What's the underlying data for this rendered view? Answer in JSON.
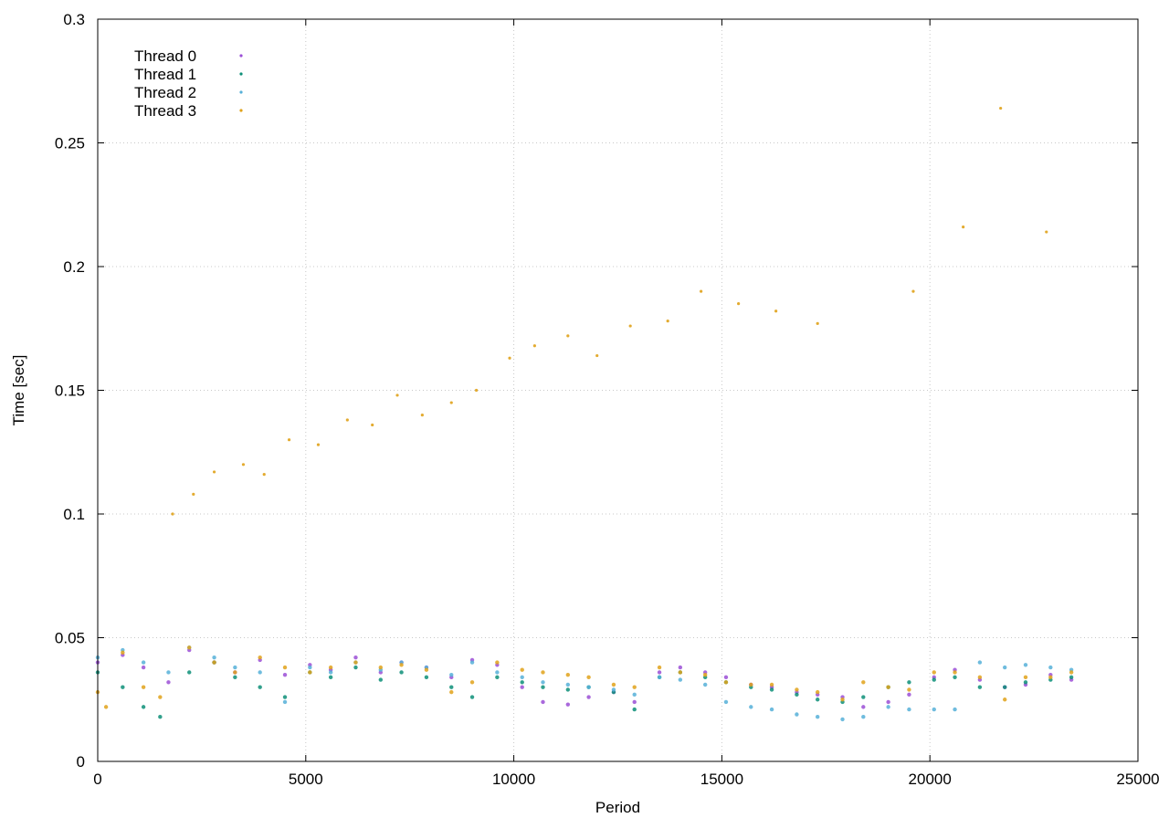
{
  "chart_data": {
    "type": "scatter",
    "title": "",
    "xlabel": "Period",
    "ylabel": "Time [sec]",
    "xlim": [
      0,
      25000
    ],
    "ylim": [
      0,
      0.3
    ],
    "x_ticks": [
      0,
      5000,
      10000,
      15000,
      20000,
      25000
    ],
    "x_tick_labels": [
      "0",
      "5000",
      "10000",
      "15000",
      "20000",
      "25000"
    ],
    "y_ticks": [
      0,
      0.05,
      0.1,
      0.15,
      0.2,
      0.25,
      0.3
    ],
    "y_tick_labels": [
      "0",
      "0.05",
      "0.1",
      "0.15",
      "0.2",
      "0.25",
      "0.3"
    ],
    "grid": true,
    "legend_position": "top-left",
    "series": [
      {
        "name": "Thread 0",
        "color": "#9b4fd6",
        "points": [
          [
            0,
            0.04
          ],
          [
            600,
            0.043
          ],
          [
            1100,
            0.038
          ],
          [
            1700,
            0.032
          ],
          [
            2200,
            0.045
          ],
          [
            2800,
            0.04
          ],
          [
            3300,
            0.036
          ],
          [
            3900,
            0.041
          ],
          [
            4500,
            0.035
          ],
          [
            5100,
            0.039
          ],
          [
            5600,
            0.037
          ],
          [
            6200,
            0.042
          ],
          [
            6800,
            0.036
          ],
          [
            7300,
            0.04
          ],
          [
            7900,
            0.038
          ],
          [
            8500,
            0.034
          ],
          [
            9000,
            0.041
          ],
          [
            9600,
            0.039
          ],
          [
            10200,
            0.03
          ],
          [
            10700,
            0.024
          ],
          [
            11300,
            0.023
          ],
          [
            11800,
            0.026
          ],
          [
            12400,
            0.028
          ],
          [
            12900,
            0.024
          ],
          [
            13500,
            0.036
          ],
          [
            14000,
            0.038
          ],
          [
            14600,
            0.036
          ],
          [
            15100,
            0.034
          ],
          [
            15700,
            0.031
          ],
          [
            16200,
            0.03
          ],
          [
            16800,
            0.028
          ],
          [
            17300,
            0.027
          ],
          [
            17900,
            0.026
          ],
          [
            18400,
            0.022
          ],
          [
            19000,
            0.024
          ],
          [
            19500,
            0.027
          ],
          [
            20100,
            0.034
          ],
          [
            20600,
            0.037
          ],
          [
            21200,
            0.033
          ],
          [
            21800,
            0.03
          ],
          [
            22300,
            0.031
          ],
          [
            22900,
            0.035
          ],
          [
            23400,
            0.033
          ]
        ]
      },
      {
        "name": "Thread 1",
        "color": "#0d8f78",
        "points": [
          [
            0,
            0.036
          ],
          [
            600,
            0.03
          ],
          [
            1100,
            0.022
          ],
          [
            1500,
            0.018
          ],
          [
            2200,
            0.036
          ],
          [
            2800,
            0.04
          ],
          [
            3300,
            0.034
          ],
          [
            3900,
            0.03
          ],
          [
            4500,
            0.026
          ],
          [
            5100,
            0.036
          ],
          [
            5600,
            0.034
          ],
          [
            6200,
            0.038
          ],
          [
            6800,
            0.033
          ],
          [
            7300,
            0.036
          ],
          [
            7900,
            0.034
          ],
          [
            8500,
            0.03
          ],
          [
            9000,
            0.026
          ],
          [
            9600,
            0.034
          ],
          [
            10200,
            0.032
          ],
          [
            10700,
            0.03
          ],
          [
            11300,
            0.029
          ],
          [
            11800,
            0.03
          ],
          [
            12400,
            0.028
          ],
          [
            12900,
            0.021
          ],
          [
            13500,
            0.034
          ],
          [
            14000,
            0.036
          ],
          [
            14600,
            0.034
          ],
          [
            15100,
            0.032
          ],
          [
            15700,
            0.03
          ],
          [
            16200,
            0.029
          ],
          [
            16800,
            0.027
          ],
          [
            17300,
            0.025
          ],
          [
            17900,
            0.024
          ],
          [
            18400,
            0.026
          ],
          [
            19000,
            0.03
          ],
          [
            19500,
            0.032
          ],
          [
            20100,
            0.033
          ],
          [
            20600,
            0.034
          ],
          [
            21200,
            0.03
          ],
          [
            21800,
            0.03
          ],
          [
            22300,
            0.032
          ],
          [
            22900,
            0.033
          ],
          [
            23400,
            0.034
          ]
        ]
      },
      {
        "name": "Thread 2",
        "color": "#56b0d8",
        "points": [
          [
            0,
            0.042
          ],
          [
            600,
            0.045
          ],
          [
            1100,
            0.04
          ],
          [
            1700,
            0.036
          ],
          [
            2200,
            0.046
          ],
          [
            2800,
            0.042
          ],
          [
            3300,
            0.038
          ],
          [
            3900,
            0.036
          ],
          [
            4500,
            0.024
          ],
          [
            5100,
            0.038
          ],
          [
            5600,
            0.036
          ],
          [
            6200,
            0.04
          ],
          [
            6800,
            0.037
          ],
          [
            7300,
            0.04
          ],
          [
            7900,
            0.038
          ],
          [
            8500,
            0.035
          ],
          [
            9000,
            0.04
          ],
          [
            9600,
            0.036
          ],
          [
            10200,
            0.034
          ],
          [
            10700,
            0.032
          ],
          [
            11300,
            0.031
          ],
          [
            11800,
            0.03
          ],
          [
            12400,
            0.029
          ],
          [
            12900,
            0.027
          ],
          [
            13500,
            0.034
          ],
          [
            14000,
            0.033
          ],
          [
            14600,
            0.031
          ],
          [
            15100,
            0.024
          ],
          [
            15700,
            0.022
          ],
          [
            16200,
            0.021
          ],
          [
            16800,
            0.019
          ],
          [
            17300,
            0.018
          ],
          [
            17900,
            0.017
          ],
          [
            18400,
            0.018
          ],
          [
            19000,
            0.022
          ],
          [
            19500,
            0.021
          ],
          [
            20100,
            0.021
          ],
          [
            20600,
            0.021
          ],
          [
            21200,
            0.04
          ],
          [
            21800,
            0.038
          ],
          [
            22300,
            0.039
          ],
          [
            22900,
            0.038
          ],
          [
            23400,
            0.037
          ]
        ]
      },
      {
        "name": "Thread 3",
        "color": "#e0a21a",
        "points": [
          [
            0,
            0.028
          ],
          [
            200,
            0.022
          ],
          [
            600,
            0.044
          ],
          [
            1100,
            0.03
          ],
          [
            1500,
            0.026
          ],
          [
            2200,
            0.046
          ],
          [
            2800,
            0.04
          ],
          [
            3300,
            0.036
          ],
          [
            3900,
            0.042
          ],
          [
            4500,
            0.038
          ],
          [
            5100,
            0.036
          ],
          [
            5600,
            0.038
          ],
          [
            6200,
            0.04
          ],
          [
            6800,
            0.038
          ],
          [
            7300,
            0.039
          ],
          [
            7900,
            0.037
          ],
          [
            8500,
            0.028
          ],
          [
            9000,
            0.032
          ],
          [
            9600,
            0.04
          ],
          [
            10200,
            0.037
          ],
          [
            10700,
            0.036
          ],
          [
            11300,
            0.035
          ],
          [
            11800,
            0.034
          ],
          [
            12400,
            0.031
          ],
          [
            12900,
            0.03
          ],
          [
            13500,
            0.038
          ],
          [
            14000,
            0.036
          ],
          [
            14600,
            0.035
          ],
          [
            15100,
            0.032
          ],
          [
            15700,
            0.031
          ],
          [
            16200,
            0.031
          ],
          [
            16800,
            0.029
          ],
          [
            17300,
            0.028
          ],
          [
            17900,
            0.025
          ],
          [
            18400,
            0.032
          ],
          [
            19000,
            0.03
          ],
          [
            19500,
            0.029
          ],
          [
            20100,
            0.036
          ],
          [
            20600,
            0.036
          ],
          [
            21200,
            0.034
          ],
          [
            21800,
            0.025
          ],
          [
            22300,
            0.034
          ],
          [
            22900,
            0.034
          ],
          [
            23400,
            0.036
          ]
        ],
        "outliers": [
          [
            1800,
            0.1
          ],
          [
            2300,
            0.108
          ],
          [
            2800,
            0.117
          ],
          [
            3500,
            0.12
          ],
          [
            4000,
            0.116
          ],
          [
            4600,
            0.13
          ],
          [
            5300,
            0.128
          ],
          [
            6000,
            0.138
          ],
          [
            6600,
            0.136
          ],
          [
            7200,
            0.148
          ],
          [
            7800,
            0.14
          ],
          [
            8500,
            0.145
          ],
          [
            9100,
            0.15
          ],
          [
            9900,
            0.163
          ],
          [
            10500,
            0.168
          ],
          [
            11300,
            0.172
          ],
          [
            12000,
            0.164
          ],
          [
            12800,
            0.176
          ],
          [
            13700,
            0.178
          ],
          [
            14500,
            0.19
          ],
          [
            15400,
            0.185
          ],
          [
            16300,
            0.182
          ],
          [
            17300,
            0.177
          ],
          [
            19600,
            0.19
          ],
          [
            20800,
            0.216
          ],
          [
            22800,
            0.214
          ],
          [
            21700,
            0.264
          ]
        ]
      }
    ]
  }
}
